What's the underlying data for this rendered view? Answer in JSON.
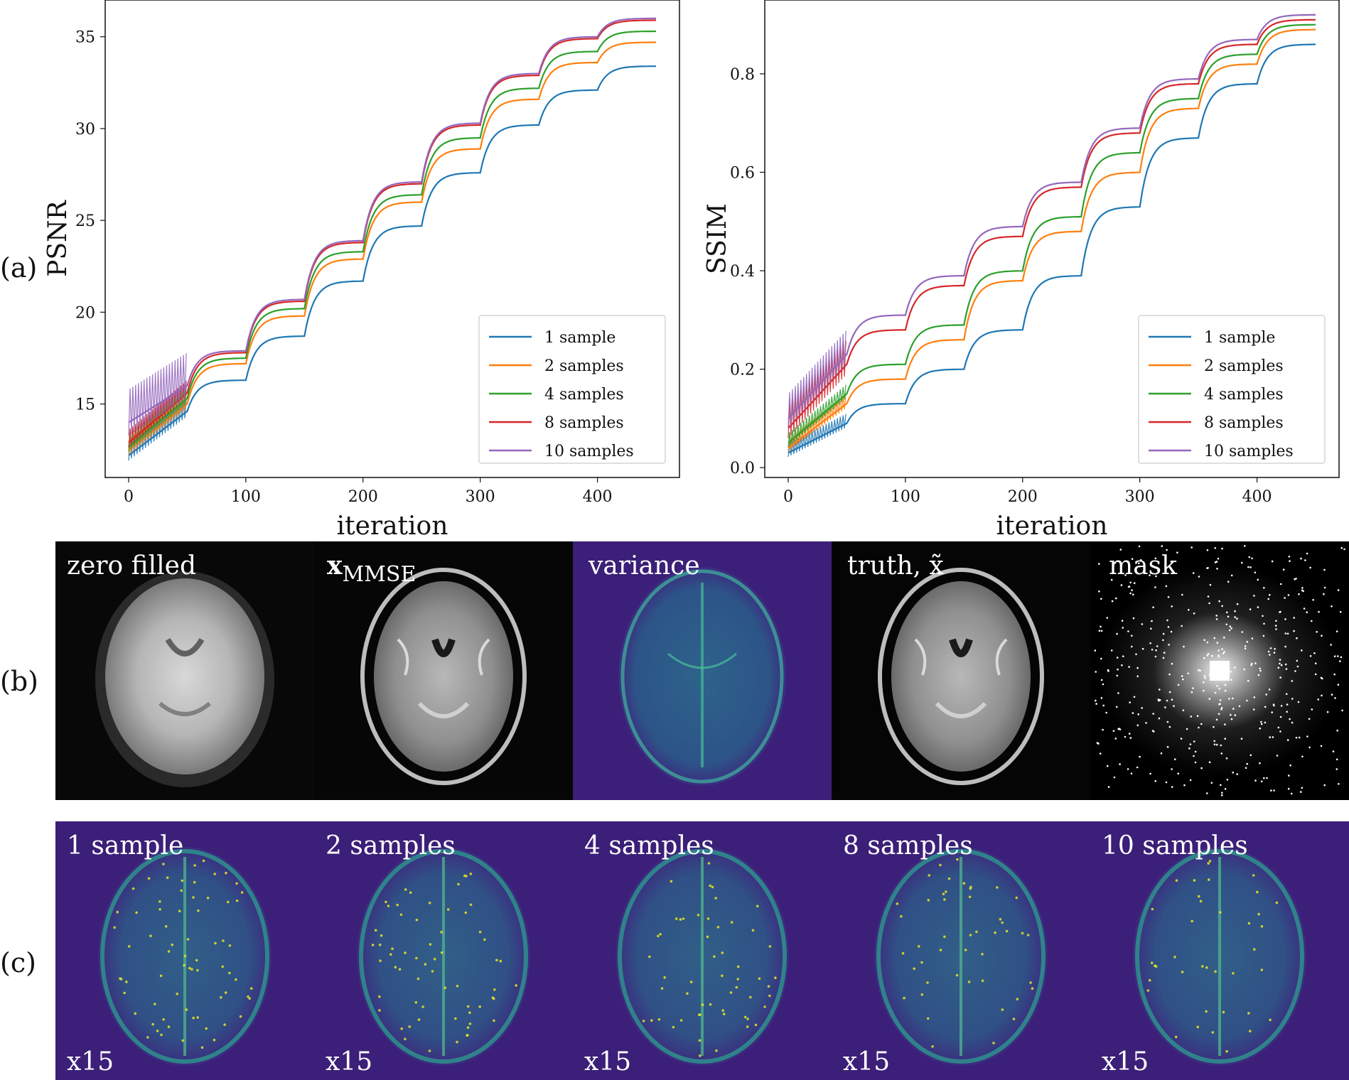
{
  "figure": {
    "row_labels": [
      "(a)",
      "(b)",
      "(c)"
    ],
    "row_b_panels": [
      {
        "label": "zero filled",
        "kind": "zero-filled"
      },
      {
        "label": "x",
        "subscript": "MMSE",
        "kind": "mmse"
      },
      {
        "label": "variance",
        "kind": "variance"
      },
      {
        "label": "truth, x̃",
        "kind": "truth"
      },
      {
        "label": "mask",
        "kind": "mask"
      }
    ],
    "row_c_panels": [
      {
        "label": "1 sample",
        "scale": "x15"
      },
      {
        "label": "2 samples",
        "scale": "x15"
      },
      {
        "label": "4 samples",
        "scale": "x15"
      },
      {
        "label": "8 samples",
        "scale": "x15"
      },
      {
        "label": "10 samples",
        "scale": "x15"
      }
    ],
    "colors": {
      "viridis_bg": "#3b1f78",
      "viridis_mid": "#2f8c8c",
      "viridis_hi": "#e8e423"
    }
  },
  "chart_data": [
    {
      "type": "line",
      "title": "",
      "xlabel": "iteration",
      "ylabel": "PSNR",
      "xlim": [
        -20,
        470
      ],
      "ylim": [
        11,
        37
      ],
      "xticks": [
        0,
        100,
        200,
        300,
        400
      ],
      "yticks": [
        15,
        20,
        25,
        30,
        35
      ],
      "grid": false,
      "legend_position": "lower-right",
      "x": [
        0,
        50,
        100,
        150,
        200,
        250,
        300,
        350,
        400,
        450
      ],
      "series": [
        {
          "name": "1 sample",
          "color": "#1f77b4",
          "values": [
            12.2,
            14.6,
            16.3,
            18.7,
            21.7,
            24.7,
            27.6,
            30.2,
            32.1,
            33.4
          ]
        },
        {
          "name": "2 samples",
          "color": "#ff7f0e",
          "values": [
            12.5,
            15.0,
            17.2,
            19.8,
            22.9,
            26.0,
            28.9,
            31.6,
            33.6,
            34.7
          ]
        },
        {
          "name": "4 samples",
          "color": "#2ca02c",
          "values": [
            12.7,
            15.3,
            17.5,
            20.2,
            23.3,
            26.4,
            29.5,
            32.2,
            34.2,
            35.3
          ]
        },
        {
          "name": "8 samples",
          "color": "#d62728",
          "values": [
            12.9,
            15.6,
            17.8,
            20.6,
            23.8,
            27.0,
            30.2,
            32.9,
            34.9,
            35.9
          ]
        },
        {
          "name": "10 samples",
          "color": "#9467bd",
          "values": [
            14.0,
            16.0,
            17.9,
            20.7,
            23.9,
            27.1,
            30.3,
            33.0,
            35.0,
            36.0
          ]
        }
      ]
    },
    {
      "type": "line",
      "title": "",
      "xlabel": "iteration",
      "ylabel": "SSIM",
      "xlim": [
        -20,
        470
      ],
      "ylim": [
        -0.02,
        0.95
      ],
      "xticks": [
        0,
        100,
        200,
        300,
        400
      ],
      "yticks": [
        0.0,
        0.2,
        0.4,
        0.6,
        0.8
      ],
      "grid": false,
      "legend_position": "lower-right",
      "x": [
        0,
        50,
        100,
        150,
        200,
        250,
        300,
        350,
        400,
        450
      ],
      "series": [
        {
          "name": "1 sample",
          "color": "#1f77b4",
          "values": [
            0.03,
            0.09,
            0.13,
            0.2,
            0.28,
            0.39,
            0.53,
            0.67,
            0.78,
            0.86
          ]
        },
        {
          "name": "2 samples",
          "color": "#ff7f0e",
          "values": [
            0.04,
            0.13,
            0.18,
            0.26,
            0.38,
            0.48,
            0.6,
            0.73,
            0.82,
            0.89
          ]
        },
        {
          "name": "4 samples",
          "color": "#2ca02c",
          "values": [
            0.05,
            0.15,
            0.21,
            0.29,
            0.4,
            0.51,
            0.64,
            0.75,
            0.84,
            0.9
          ]
        },
        {
          "name": "8 samples",
          "color": "#d62728",
          "values": [
            0.08,
            0.21,
            0.28,
            0.37,
            0.47,
            0.57,
            0.68,
            0.78,
            0.86,
            0.91
          ]
        },
        {
          "name": "10 samples",
          "color": "#9467bd",
          "values": [
            0.1,
            0.23,
            0.31,
            0.39,
            0.49,
            0.58,
            0.69,
            0.79,
            0.87,
            0.92
          ]
        }
      ]
    }
  ]
}
